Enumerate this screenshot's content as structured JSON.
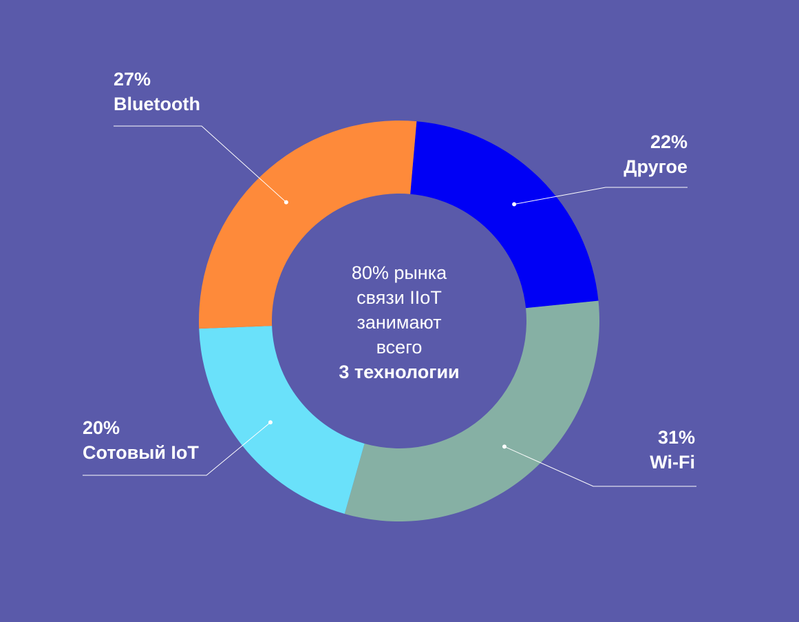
{
  "chart_data": {
    "type": "pie",
    "donut": true,
    "slices": [
      {
        "label": "Другое",
        "value": 22,
        "percent_label": "22%",
        "color": "#0000F5"
      },
      {
        "label": "Wi-Fi",
        "value": 31,
        "percent_label": "31%",
        "color": "#86B0A4"
      },
      {
        "label": "Сотовый IoT",
        "value": 20,
        "percent_label": "20%",
        "color": "#6AE1FA"
      },
      {
        "label": "Bluetooth",
        "value": 27,
        "percent_label": "27%",
        "color": "#FE8A3A"
      }
    ],
    "center_text": {
      "lines": [
        "80% рынка",
        "связи IIoT",
        "занимают",
        "всего"
      ],
      "highlight": "3 технологии"
    }
  },
  "colors": {
    "background": "#5A5AAA",
    "text": "#FFFFFF",
    "leader_line": "#FFFFFF"
  }
}
